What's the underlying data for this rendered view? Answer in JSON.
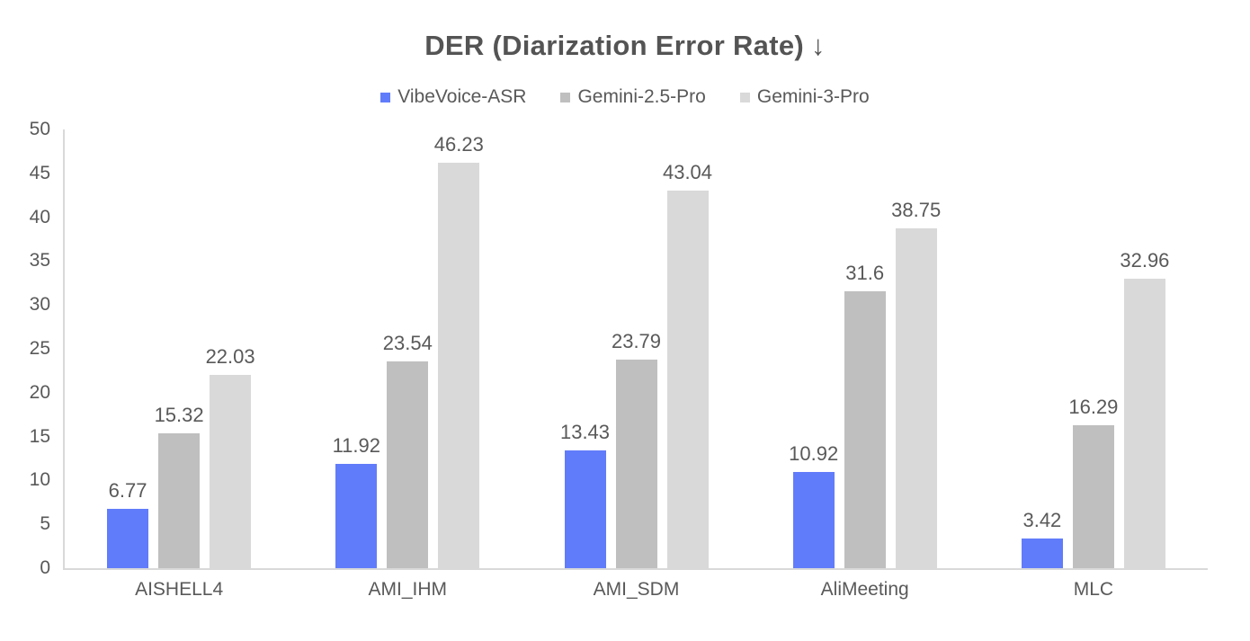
{
  "chart_data": {
    "type": "bar",
    "title": "DER (Diarization Error Rate)",
    "title_arrow": "↓",
    "categories": [
      "AISHELL4",
      "AMI_IHM",
      "AMI_SDM",
      "AliMeeting",
      "MLC"
    ],
    "series": [
      {
        "name": "VibeVoice-ASR",
        "color": "#617CFA",
        "values": [
          6.77,
          11.92,
          13.43,
          10.92,
          3.42
        ]
      },
      {
        "name": "Gemini-2.5-Pro",
        "color": "#BFBFBF",
        "values": [
          15.32,
          23.54,
          23.79,
          31.6,
          16.29
        ]
      },
      {
        "name": "Gemini-3-Pro",
        "color": "#D9D9D9",
        "values": [
          22.03,
          46.23,
          43.04,
          38.75,
          32.96
        ]
      }
    ],
    "xlabel": "",
    "ylabel": "",
    "ylim": [
      0,
      50
    ],
    "yticks": [
      0,
      5,
      10,
      15,
      20,
      25,
      30,
      35,
      40,
      45,
      50
    ],
    "grid": false,
    "legend_position": "top",
    "data_labels_visible": true,
    "axis_color": "#D9D9D9",
    "text_color": "#595959",
    "title_color": "#545454",
    "background": "#FFFFFF"
  }
}
